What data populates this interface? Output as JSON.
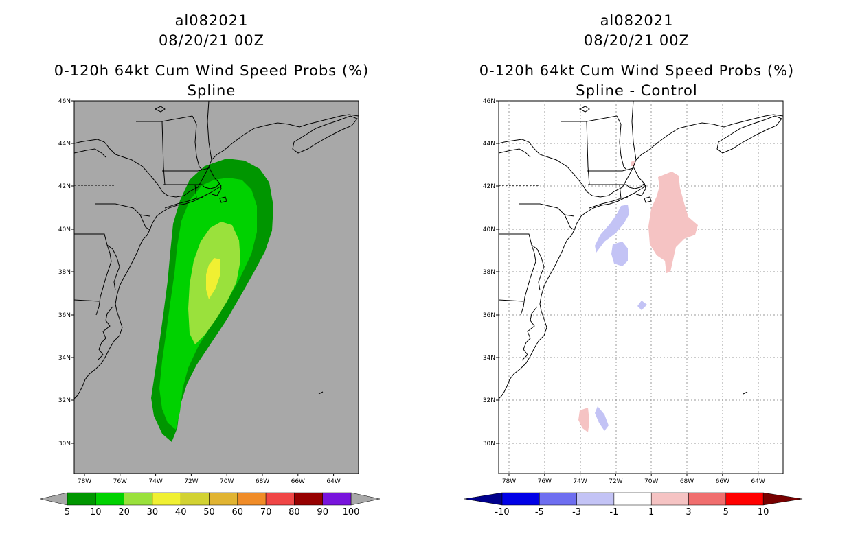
{
  "left_panel": {
    "title_line1": "al082021",
    "title_line2": "08/20/21 00Z",
    "title_line3": "0-120h 64kt Cum Wind Speed Probs (%)",
    "title_line4": "Spline",
    "background_color": "#a8a8a8",
    "colorbar": {
      "labels": [
        "5",
        "10",
        "20",
        "30",
        "40",
        "50",
        "60",
        "70",
        "80",
        "90",
        "100"
      ],
      "colors": [
        "#009600",
        "#00d200",
        "#9ae13c",
        "#f0f032",
        "#d2d232",
        "#e1b432",
        "#f08c28",
        "#f04646",
        "#960000",
        "#7814dc"
      ],
      "end_color": "#a8a8a8"
    }
  },
  "right_panel": {
    "title_line1": "al082021",
    "title_line2": "08/20/21 00Z",
    "title_line3": "0-120h 64kt Cum Wind Speed Probs (%)",
    "title_line4": "Spline - Control",
    "background_color": "#ffffff",
    "colorbar": {
      "labels": [
        "-10",
        "-5",
        "-3",
        "-1",
        "1",
        "3",
        "5",
        "10"
      ],
      "colors": [
        "#0000e6",
        "#6e6ef0",
        "#c3c3f5",
        "#ffffff",
        "#f5c3c3",
        "#f06e6e",
        "#ff0000"
      ],
      "low_end_color": "#00008c",
      "high_end_color": "#780000"
    }
  },
  "axes": {
    "lat_labels": [
      "46N",
      "44N",
      "42N",
      "40N",
      "38N",
      "36N",
      "34N",
      "32N",
      "30N"
    ],
    "lon_labels": [
      "78W",
      "76W",
      "74W",
      "72W",
      "70W",
      "68W",
      "66W",
      "64W"
    ]
  }
}
